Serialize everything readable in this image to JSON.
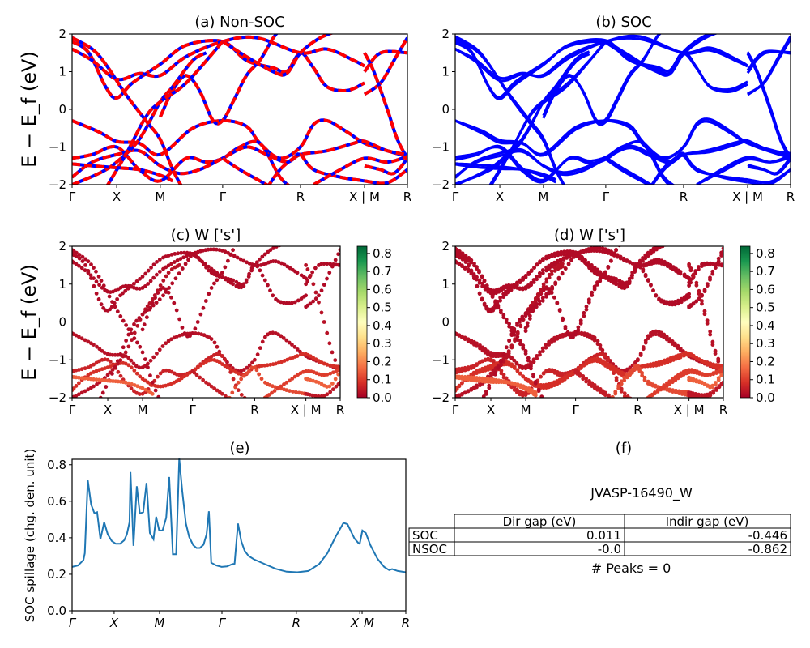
{
  "chart_data": [
    {
      "type": "line",
      "panel": "a",
      "title": "(a) Non-SOC",
      "ylabel": "E − E_f (eV)",
      "ylim": [
        -2,
        2
      ],
      "yticks": [
        "−2",
        "−1",
        "0",
        "1",
        "2"
      ],
      "xticks": [
        {
          "label": "Γ",
          "k": 0
        },
        {
          "label": "X",
          "k": 13.3
        },
        {
          "label": "M",
          "k": 26.3
        },
        {
          "label": "Γ",
          "k": 44.9
        },
        {
          "label": "R",
          "k": 68.1
        },
        {
          "label": "X | M",
          "k": 87.2
        },
        {
          "label": "R",
          "k": 100
        }
      ],
      "colors": {
        "line": "#ff0000",
        "dash": "#0000ff"
      }
    },
    {
      "type": "line",
      "panel": "b",
      "title": "(b) SOC",
      "ylim": [
        -2,
        2
      ],
      "yticks": [
        "−2",
        "−1",
        "0",
        "1",
        "2"
      ],
      "xticks": [
        {
          "label": "Γ",
          "k": 0
        },
        {
          "label": "X",
          "k": 13.3
        },
        {
          "label": "M",
          "k": 26.3
        },
        {
          "label": "Γ",
          "k": 44.9
        },
        {
          "label": "R",
          "k": 68.1
        },
        {
          "label": "X | M",
          "k": 87.2
        },
        {
          "label": "R",
          "k": 100
        }
      ],
      "colors": {
        "line": "#0000ff"
      }
    },
    {
      "type": "scatter",
      "panel": "c",
      "title": "(c)  W ['s']",
      "ylabel": "E − E_f (eV)",
      "ylim": [
        -2,
        2
      ],
      "yticks": [
        "−2",
        "−1",
        "0",
        "1",
        "2"
      ],
      "xticks": [
        {
          "label": "Γ",
          "k": 0
        },
        {
          "label": "X",
          "k": 13.3
        },
        {
          "label": "M",
          "k": 26.3
        },
        {
          "label": "Γ",
          "k": 44.9
        },
        {
          "label": "R",
          "k": 68.1
        },
        {
          "label": "X | M",
          "k": 87.2
        },
        {
          "label": "R",
          "k": 100
        }
      ],
      "colorbar": {
        "colormap": "RdYlGn",
        "range": [
          0,
          0.84
        ],
        "ticks": [
          "0.0",
          "0.1",
          "0.2",
          "0.3",
          "0.4",
          "0.5",
          "0.6",
          "0.7",
          "0.8"
        ]
      }
    },
    {
      "type": "scatter",
      "panel": "d",
      "title": "(d) W ['s']",
      "ylim": [
        -2,
        2
      ],
      "yticks": [
        "−2",
        "−1",
        "0",
        "1",
        "2"
      ],
      "xticks": [
        {
          "label": "Γ",
          "k": 0
        },
        {
          "label": "X",
          "k": 13.3
        },
        {
          "label": "M",
          "k": 26.3
        },
        {
          "label": "Γ",
          "k": 44.9
        },
        {
          "label": "R",
          "k": 68.1
        },
        {
          "label": "X | M",
          "k": 87.2
        },
        {
          "label": "R",
          "k": 100
        }
      ],
      "colorbar": {
        "colormap": "RdYlGn",
        "range": [
          0,
          0.84
        ],
        "ticks": [
          "0.0",
          "0.1",
          "0.2",
          "0.3",
          "0.4",
          "0.5",
          "0.6",
          "0.7",
          "0.8"
        ]
      }
    },
    {
      "type": "line",
      "panel": "e",
      "title": "(e)",
      "ylabel": "SOC spillage (chg. den. unit)",
      "ylim": [
        0,
        0.83
      ],
      "yticks": [
        "0.0",
        "0.2",
        "0.4",
        "0.6",
        "0.8"
      ],
      "xticks": [
        {
          "label": "Γ",
          "k": 0
        },
        {
          "label": "X",
          "k": 12.6
        },
        {
          "label": "M",
          "k": 26.2
        },
        {
          "label": "Γ",
          "k": 44.9
        },
        {
          "label": "R",
          "k": 67.2
        },
        {
          "label": "X",
          "k": 86.2
        },
        {
          "label": "M",
          "k": 86.9
        },
        {
          "label": "R",
          "k": 100
        }
      ],
      "color": "#1f77b4",
      "k": [
        0,
        1.8,
        3.4,
        3.8,
        4.7,
        5.7,
        6.7,
        7.5,
        8.5,
        9.6,
        10.7,
        11.9,
        13.1,
        14.4,
        15.6,
        16.4,
        17.2,
        17.5,
        18.4,
        19.4,
        20.3,
        21.3,
        22.3,
        23.3,
        24.4,
        25.2,
        26.1,
        27.1,
        28.2,
        29.1,
        30.2,
        31.2,
        32.1,
        33,
        34.1,
        35.1,
        36.3,
        37.3,
        38.3,
        39.4,
        40.3,
        41,
        41.7,
        43.2,
        44.8,
        46.4,
        48,
        48.7,
        49.7,
        50.7,
        51.7,
        52.9,
        54.5,
        57.8,
        61,
        64.3,
        67.5,
        70.8,
        74,
        76.5,
        78.9,
        81.3,
        82.5,
        84.6,
        85.8,
        86.2,
        87,
        88,
        89.4,
        91.5,
        93.5,
        95,
        95.9,
        97.6,
        100
      ],
      "values": [
        0.24,
        0.248,
        0.278,
        0.315,
        0.715,
        0.582,
        0.534,
        0.54,
        0.392,
        0.485,
        0.418,
        0.382,
        0.367,
        0.367,
        0.386,
        0.418,
        0.485,
        0.76,
        0.356,
        0.682,
        0.533,
        0.54,
        0.7,
        0.426,
        0.392,
        0.515,
        0.44,
        0.44,
        0.51,
        0.733,
        0.31,
        0.31,
        0.834,
        0.656,
        0.478,
        0.404,
        0.359,
        0.344,
        0.344,
        0.362,
        0.418,
        0.545,
        0.263,
        0.248,
        0.24,
        0.243,
        0.255,
        0.258,
        0.478,
        0.381,
        0.329,
        0.3,
        0.282,
        0.255,
        0.23,
        0.214,
        0.211,
        0.218,
        0.255,
        0.315,
        0.404,
        0.481,
        0.475,
        0.396,
        0.371,
        0.367,
        0.44,
        0.426,
        0.359,
        0.285,
        0.24,
        0.223,
        0.228,
        0.218,
        0.211
      ]
    },
    {
      "type": "table",
      "panel": "f",
      "title": "(f)",
      "subtitle": "JVASP-16490_W",
      "columns": [
        "",
        "Dir gap (eV)",
        "Indir gap (eV)"
      ],
      "rows": [
        [
          "SOC",
          "0.011",
          "-0.446"
        ],
        [
          "NSOC",
          "-0.0",
          "-0.862"
        ]
      ],
      "footer": "# Peaks = 0"
    }
  ],
  "bands": [
    {
      "w": 0.03,
      "pts": [
        [
          0,
          -0.3
        ],
        [
          8,
          -0.6
        ],
        [
          13.3,
          -0.85
        ],
        [
          20,
          -0.9
        ],
        [
          26.3,
          -1.2
        ],
        [
          36,
          -0.5
        ],
        [
          44.9,
          -0.3
        ],
        [
          52,
          -0.45
        ],
        [
          56,
          -0.9
        ],
        [
          62,
          -1.3
        ],
        [
          68.1,
          -1.0
        ],
        [
          72,
          -0.4
        ],
        [
          76,
          -0.3
        ],
        [
          82,
          -0.6
        ],
        [
          87.2,
          -0.9
        ],
        [
          94,
          -1.1
        ],
        [
          100,
          -1.25
        ]
      ]
    },
    {
      "w": 0.02,
      "pts": [
        [
          26.3,
          -0.2
        ],
        [
          30,
          0.5
        ],
        [
          34,
          0.9
        ],
        [
          38,
          0.5
        ],
        [
          42,
          -0.3
        ],
        [
          44.9,
          -0.3
        ],
        [
          48,
          0.2
        ],
        [
          52,
          0.9
        ],
        [
          56,
          1.3
        ],
        [
          60,
          1.9
        ],
        [
          62,
          2.1
        ]
      ]
    },
    {
      "w": 0.02,
      "pts": [
        [
          0,
          1.8
        ],
        [
          5,
          1.5
        ],
        [
          10,
          0.6
        ],
        [
          13.3,
          0.3
        ],
        [
          18,
          0.7
        ],
        [
          26.3,
          1.2
        ],
        [
          34,
          1.7
        ],
        [
          44.9,
          1.8
        ],
        [
          52,
          1.3
        ],
        [
          60,
          1.1
        ],
        [
          64,
          1.0
        ],
        [
          68.1,
          1.5
        ],
        [
          72,
          1.1
        ],
        [
          76,
          0.6
        ],
        [
          82,
          0.5
        ],
        [
          87.2,
          0.7
        ]
      ]
    },
    {
      "w": 0.02,
      "pts": [
        [
          0,
          1.6
        ],
        [
          6,
          1.3
        ],
        [
          13.3,
          0.8
        ],
        [
          20,
          0.95
        ],
        [
          26.3,
          0.9
        ],
        [
          34,
          1.4
        ],
        [
          44.9,
          1.8
        ],
        [
          55,
          1.9
        ],
        [
          68.1,
          1.5
        ],
        [
          76,
          1.6
        ],
        [
          84,
          1.3
        ],
        [
          87.2,
          1.15
        ]
      ]
    },
    {
      "w": 0.02,
      "pts": [
        [
          44.9,
          1.8
        ],
        [
          52,
          1.4
        ],
        [
          60,
          1.0
        ],
        [
          64,
          0.95
        ],
        [
          68.1,
          1.5
        ],
        [
          74,
          1.9
        ],
        [
          80,
          2.1
        ]
      ]
    },
    {
      "w": 0.02,
      "pts": [
        [
          87.2,
          1.0
        ],
        [
          92,
          1.5
        ],
        [
          100,
          1.5
        ]
      ]
    },
    {
      "w": 0.02,
      "pts": [
        [
          87.2,
          0.4
        ],
        [
          92,
          0.7
        ],
        [
          96,
          1.3
        ],
        [
          100,
          1.9
        ]
      ]
    },
    {
      "w": 0.03,
      "pts": [
        [
          87.2,
          1.5
        ],
        [
          90,
          1.0
        ],
        [
          94,
          0
        ],
        [
          97,
          -0.8
        ],
        [
          100,
          -1.3
        ]
      ]
    },
    {
      "w": 0.06,
      "pts": [
        [
          0,
          -1.3
        ],
        [
          6,
          -1.2
        ],
        [
          13.3,
          -1.0
        ],
        [
          20,
          -1.6
        ],
        [
          26.3,
          -1.9
        ],
        [
          34,
          -1.3
        ],
        [
          40,
          -1.4
        ],
        [
          44.9,
          -1.3
        ],
        [
          50,
          -1.0
        ],
        [
          56,
          -0.9
        ],
        [
          62,
          -1.8
        ],
        [
          66,
          -2.1
        ]
      ]
    },
    {
      "w": 0.08,
      "pts": [
        [
          0,
          -1.8
        ],
        [
          6,
          -1.4
        ],
        [
          13.3,
          -1.2
        ],
        [
          20,
          -1.1
        ],
        [
          26.3,
          -1.5
        ],
        [
          32,
          -1.7
        ],
        [
          38,
          -1.6
        ],
        [
          44.9,
          -1.3
        ],
        [
          52,
          -1.0
        ],
        [
          58,
          -1.2
        ],
        [
          64,
          -1.4
        ],
        [
          68.1,
          -1.2
        ],
        [
          76,
          -1.1
        ],
        [
          84,
          -0.9
        ],
        [
          87.2,
          -0.85
        ],
        [
          94,
          -1.1
        ],
        [
          100,
          -1.2
        ]
      ]
    },
    {
      "w": 0.05,
      "pts": [
        [
          44.9,
          -1.3
        ],
        [
          50,
          -1.6
        ],
        [
          56,
          -1.9
        ],
        [
          60,
          -2.1
        ]
      ]
    },
    {
      "w": 0.12,
      "pts": [
        [
          58,
          -2.1
        ],
        [
          62,
          -1.6
        ],
        [
          66,
          -1.3
        ],
        [
          68.1,
          -1.2
        ],
        [
          72,
          -1.6
        ],
        [
          80,
          -1.8
        ],
        [
          87.2,
          -1.9
        ]
      ]
    },
    {
      "w": 0.03,
      "pts": [
        [
          0,
          -2.0
        ],
        [
          8,
          -1.7
        ],
        [
          13.3,
          -1.4
        ],
        [
          20,
          -0.8
        ],
        [
          26.3,
          0.2
        ],
        [
          30,
          0.6
        ],
        [
          36,
          1.3
        ],
        [
          40,
          1.5
        ]
      ]
    },
    {
      "w": 0.02,
      "pts": [
        [
          10,
          -2.1
        ],
        [
          16,
          -1.2
        ],
        [
          22,
          -0.2
        ],
        [
          26.3,
          0.2
        ],
        [
          34,
          0.7
        ],
        [
          44.9,
          1.8
        ]
      ]
    },
    {
      "w": 0.02,
      "pts": [
        [
          0,
          1.9
        ],
        [
          6,
          1.6
        ],
        [
          10,
          1.2
        ],
        [
          16,
          0.4
        ],
        [
          22,
          -0.3
        ],
        [
          26.3,
          -0.8
        ],
        [
          30,
          -1.6
        ],
        [
          33,
          -2.1
        ]
      ]
    },
    {
      "w": 0.15,
      "pts": [
        [
          87.2,
          -1.5
        ],
        [
          92,
          -1.6
        ],
        [
          96,
          -1.7
        ],
        [
          100,
          -1.3
        ]
      ]
    },
    {
      "w": 0.15,
      "pts": [
        [
          0,
          -1.45
        ],
        [
          6,
          -1.5
        ],
        [
          13.3,
          -1.55
        ],
        [
          20,
          -1.6
        ],
        [
          26.3,
          -1.75
        ],
        [
          30,
          -1.9
        ]
      ]
    },
    {
      "w": 0.04,
      "pts": [
        [
          87.2,
          -1.9
        ],
        [
          94,
          -1.95
        ],
        [
          100,
          -1.6
        ]
      ]
    },
    {
      "w": 0.1,
      "pts": [
        [
          72,
          -2.0
        ],
        [
          80,
          -1.6
        ],
        [
          87.2,
          -1.3
        ],
        [
          94,
          -1.4
        ],
        [
          100,
          -1.25
        ]
      ]
    }
  ]
}
